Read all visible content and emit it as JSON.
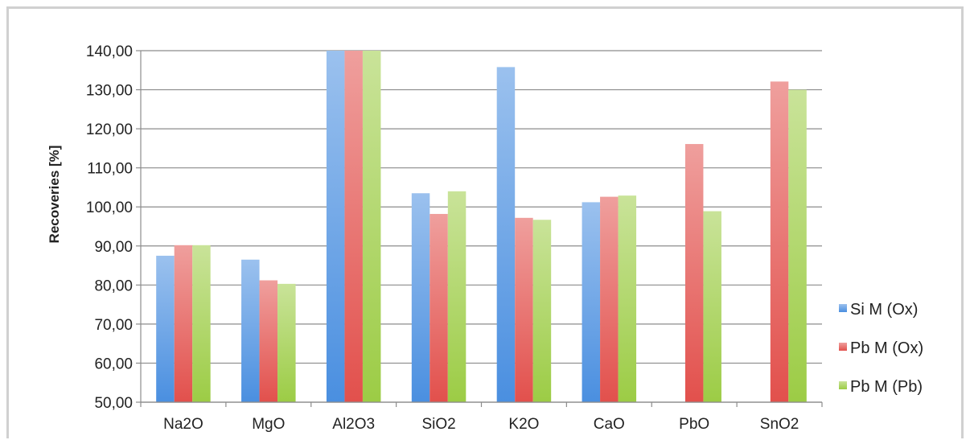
{
  "chart_data": {
    "type": "bar",
    "title": "",
    "xlabel": "",
    "ylabel": "Recoveries  [%]",
    "ylim": [
      50,
      140
    ],
    "yticks": [
      50,
      60,
      70,
      80,
      90,
      100,
      110,
      120,
      130,
      140
    ],
    "ytick_labels": [
      "50,00",
      "60,00",
      "70,00",
      "80,00",
      "90,00",
      "100,00",
      "110,00",
      "120,00",
      "130,00",
      "140,00"
    ],
    "categories": [
      "Na2O",
      "MgO",
      "Al2O3",
      "SiO2",
      "K2O",
      "CaO",
      "PbO",
      "SnO2"
    ],
    "grid": true,
    "legend_position": "right",
    "series": [
      {
        "name": "Si M (Ox)",
        "color": "#4a8fe0",
        "values": [
          87.5,
          86.5,
          140,
          103.5,
          135.8,
          101.2,
          null,
          null
        ]
      },
      {
        "name": "Pb M (Ox)",
        "color": "#e2504c",
        "values": [
          90.2,
          81.2,
          140,
          98.2,
          97.2,
          102.6,
          116.1,
          132.1
        ]
      },
      {
        "name": "Pb M (Pb)",
        "color": "#9ccc45",
        "values": [
          90.2,
          80.3,
          140,
          104.0,
          96.7,
          102.9,
          98.9,
          130.0
        ]
      }
    ]
  }
}
